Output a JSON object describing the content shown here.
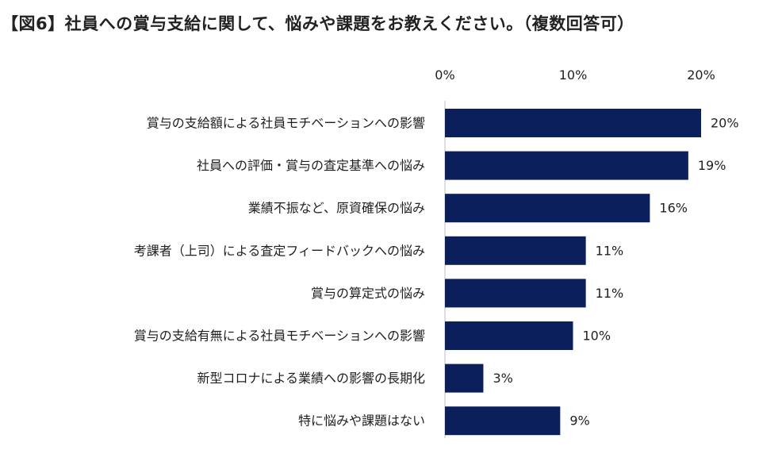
{
  "chart_data": {
    "type": "bar",
    "orientation": "horizontal",
    "title": "【図6】社員への賞与支給に関して、悩みや課題をお教えください。（複数回答可）",
    "categories": [
      "賞与の支給額による社員モチベーションへの影響",
      "社員への評価・賞与の査定基準への悩み",
      "業績不振など、原資確保の悩み",
      "考課者（上司）による査定フィードバックへの悩み",
      "賞与の算定式の悩み",
      "賞与の支給有無による社員モチベーションへの影響",
      "新型コロナによる業績への影響の長期化",
      "特に悩みや課題はない"
    ],
    "values": [
      20,
      19,
      16,
      11,
      11,
      10,
      3,
      9
    ],
    "value_labels": [
      "20%",
      "19%",
      "16%",
      "11%",
      "11%",
      "10%",
      "3%",
      "9%"
    ],
    "xlim": [
      0,
      20
    ],
    "x_ticks": [
      0,
      10,
      20
    ],
    "x_tick_labels": [
      "0%",
      "10%",
      "20%"
    ],
    "xlabel": "",
    "ylabel": "",
    "grid": false,
    "legend": "none",
    "bar_color": "#0b1f5c"
  }
}
